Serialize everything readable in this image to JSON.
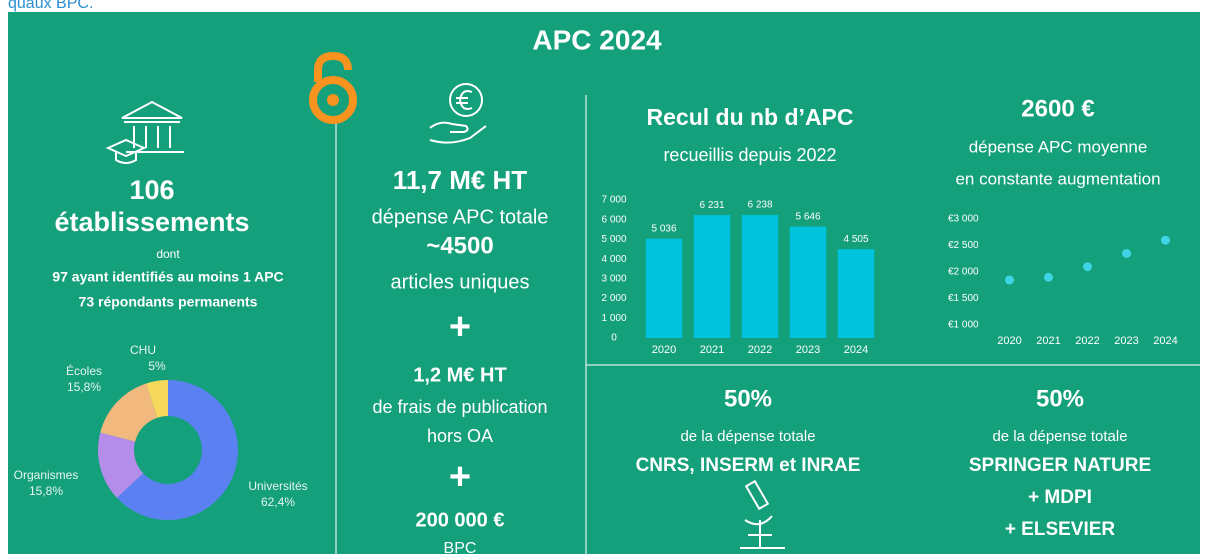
{
  "header_text": "quaux BPC.",
  "title": "APC 2024",
  "institutions": {
    "count": "106",
    "label": "établissements",
    "dont": "dont",
    "line1": "97 ayant identifiés au moins 1 APC",
    "line2": "73 répondants permanents"
  },
  "spending": {
    "total": "11,7 M€ HT",
    "total_label": "dépense APC totale",
    "articles": "~4500",
    "articles_label": "articles uniques",
    "plus1": "+",
    "fees": "1,2 M€ HT",
    "fees_label1": "de frais de publication",
    "fees_label2": "hors OA",
    "plus2": "+",
    "bpc": "200 000 €",
    "bpc_label": "BPC"
  },
  "count_panel": {
    "title": "Recul du nb d’APC",
    "subtitle": "recueillis depuis 2022"
  },
  "average_panel": {
    "title": "2600 €",
    "line1": "dépense APC moyenne",
    "line2": "en constante augmentation"
  },
  "share_labs": {
    "percent": "50%",
    "label": "de la dépense totale",
    "names": "CNRS, INSERM et INRAE"
  },
  "share_publishers": {
    "percent": "50%",
    "label": "de la dépense totale",
    "line1": "SPRINGER NATURE",
    "line2": "+ MDPI",
    "line3": "+ ELSEVIER"
  },
  "chart_data": [
    {
      "type": "bar",
      "categories": [
        "2020",
        "2021",
        "2022",
        "2023",
        "2024"
      ],
      "values": [
        5036,
        6231,
        6238,
        5646,
        4505
      ],
      "value_labels": [
        "5 036",
        "6 231",
        "6 238",
        "5 646",
        "4 505"
      ],
      "color": "#00c4dc",
      "ylim": [
        0,
        7000
      ],
      "yticks": [
        0,
        {
          "value": 1000,
          "label": "1 000"
        },
        {
          "value": 2000,
          "label": "2 000"
        },
        {
          "value": 3000,
          "label": "3 000"
        },
        {
          "value": 4000,
          "label": "4 000"
        },
        {
          "value": 5000,
          "label": "5 000"
        },
        {
          "value": 6000,
          "label": "6 000"
        },
        {
          "value": 7000,
          "label": "7 000"
        }
      ]
    },
    {
      "type": "scatter",
      "categories": [
        "2020",
        "2021",
        "2022",
        "2023",
        "2024"
      ],
      "values": [
        1850,
        1900,
        2100,
        2350,
        2600
      ],
      "color": "#3fd3e6",
      "ylim": [
        1000,
        3000
      ],
      "yticks": [
        {
          "value": 1000,
          "label": "€1 000"
        },
        {
          "value": 1500,
          "label": "€1 500"
        },
        {
          "value": 2000,
          "label": "€2 000"
        },
        {
          "value": 2500,
          "label": "€2 500"
        },
        {
          "value": 3000,
          "label": "€3 000"
        }
      ]
    },
    {
      "type": "pie",
      "categories": [
        "Universités",
        "Organismes",
        "Écoles",
        "CHU"
      ],
      "values": [
        62.4,
        15.8,
        15.8,
        5
      ],
      "value_labels": [
        "62,4%",
        "15,8%",
        "15,8%",
        "5%"
      ],
      "colors": [
        "#5b80f2",
        "#b48ce9",
        "#f1b97d",
        "#f6d95c"
      ]
    }
  ]
}
